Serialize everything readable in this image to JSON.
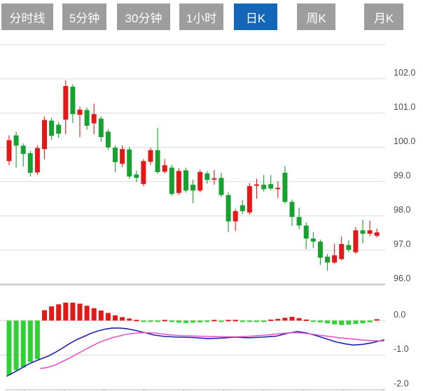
{
  "tabs": {
    "items": [
      {
        "label": "分时线",
        "active": false
      },
      {
        "label": "5分钟",
        "active": false
      },
      {
        "label": "30分钟",
        "active": false
      },
      {
        "label": "1小时",
        "active": false
      },
      {
        "label": "日K",
        "active": true
      },
      {
        "label": "周K",
        "active": false
      },
      {
        "label": "月K",
        "active": false
      }
    ]
  },
  "colors": {
    "up": "#e51717",
    "down": "#17a12e",
    "macd_up": "#e51717",
    "macd_down": "#2fd134",
    "dif_line": "#1f1fae",
    "dea_line": "#e551c9",
    "grid": "#d9d9d9",
    "separator": "#c9c9c9",
    "zero_line": "#e3cfcf",
    "axis_text": "#4d4d4d",
    "tab_bg": "#9d9d9d",
    "tab_active_bg": "#1467b8",
    "tab_text": "#ffffff"
  },
  "chart_data": [
    {
      "type": "candlestick",
      "panel": "price",
      "title": "",
      "ylabel": "",
      "ylim": [
        96,
        103
      ],
      "grid": true,
      "axis_labels": [
        "102.0",
        "101.0",
        "100.0",
        "99.0",
        "98.0",
        "97.0",
        "96.0"
      ],
      "gridline_values": [
        103,
        102,
        101,
        100,
        99,
        98,
        97,
        96
      ],
      "candles_ohlc": [
        [
          99.6,
          100.35,
          99.48,
          100.21
        ],
        [
          100.35,
          100.46,
          99.41,
          100.05
        ],
        [
          100.05,
          100.12,
          99.44,
          99.81
        ],
        [
          99.83,
          99.9,
          99.15,
          99.26
        ],
        [
          99.27,
          100.06,
          99.2,
          99.98
        ],
        [
          99.95,
          100.9,
          99.65,
          100.8
        ],
        [
          100.78,
          100.86,
          100.22,
          100.34
        ],
        [
          100.66,
          100.74,
          100.28,
          100.4
        ],
        [
          100.81,
          101.96,
          100.38,
          101.79
        ],
        [
          101.77,
          101.84,
          100.71,
          100.97
        ],
        [
          100.95,
          101.19,
          100.3,
          101.1
        ],
        [
          101.09,
          101.16,
          100.52,
          100.63
        ],
        [
          100.7,
          101.28,
          100.38,
          100.97
        ],
        [
          100.84,
          100.91,
          100.16,
          100.3
        ],
        [
          100.46,
          100.53,
          99.93,
          100.0
        ],
        [
          99.99,
          100.06,
          99.27,
          99.57
        ],
        [
          99.52,
          100.06,
          99.43,
          99.95
        ],
        [
          99.94,
          100.01,
          99.08,
          99.15
        ],
        [
          99.21,
          99.32,
          98.99,
          99.11
        ],
        [
          98.93,
          99.66,
          98.87,
          99.6
        ],
        [
          99.58,
          99.99,
          99.49,
          99.92
        ],
        [
          99.92,
          100.57,
          99.23,
          99.28
        ],
        [
          99.29,
          99.66,
          99.24,
          99.48
        ],
        [
          99.41,
          99.49,
          98.59,
          98.64
        ],
        [
          98.67,
          99.39,
          98.61,
          99.31
        ],
        [
          99.33,
          99.41,
          98.68,
          98.74
        ],
        [
          98.91,
          99.06,
          98.37,
          98.74
        ],
        [
          98.74,
          99.35,
          98.69,
          99.28
        ],
        [
          99.24,
          99.31,
          98.94,
          99.05
        ],
        [
          99.06,
          99.34,
          98.91,
          99.1
        ],
        [
          99.11,
          99.26,
          98.55,
          98.61
        ],
        [
          98.61,
          98.69,
          97.53,
          97.84
        ],
        [
          97.84,
          98.21,
          97.56,
          98.14
        ],
        [
          98.31,
          98.46,
          98.06,
          98.14
        ],
        [
          98.1,
          98.96,
          98.04,
          98.87
        ],
        [
          98.88,
          99.09,
          98.5,
          98.92
        ],
        [
          98.91,
          99.19,
          98.71,
          98.78
        ],
        [
          98.93,
          99.19,
          98.74,
          98.8
        ],
        [
          98.78,
          99.01,
          98.52,
          98.82
        ],
        [
          99.26,
          99.46,
          98.36,
          98.41
        ],
        [
          98.41,
          98.48,
          97.71,
          97.97
        ],
        [
          97.97,
          98.24,
          97.61,
          97.72
        ],
        [
          97.72,
          97.81,
          97.03,
          97.34
        ],
        [
          97.34,
          97.53,
          97.06,
          97.25
        ],
        [
          97.25,
          97.31,
          96.57,
          96.78
        ],
        [
          96.81,
          96.89,
          96.4,
          96.64
        ],
        [
          96.64,
          97.19,
          96.59,
          96.85
        ],
        [
          96.74,
          97.4,
          96.7,
          97.18
        ],
        [
          97.15,
          97.29,
          96.94,
          97.01
        ],
        [
          96.94,
          97.68,
          96.9,
          97.58
        ],
        [
          97.58,
          97.89,
          97.2,
          97.48
        ],
        [
          97.48,
          97.86,
          97.41,
          97.58
        ],
        [
          97.42,
          97.63,
          97.37,
          97.52
        ]
      ]
    },
    {
      "type": "bar",
      "panel": "macd",
      "title": "",
      "ylim": [
        -2.1,
        0.6
      ],
      "axis_labels": [
        "0.0",
        "-1.0",
        "-2.0"
      ],
      "axis_values": [
        0,
        -1,
        -2
      ],
      "histogram": [
        -1.58,
        -1.44,
        -1.36,
        -1.2,
        -1.12,
        0.3,
        0.41,
        0.47,
        0.52,
        0.52,
        0.49,
        0.43,
        0.36,
        0.29,
        0.22,
        0.15,
        0.1,
        0.06,
        0.02,
        -0.02,
        -0.03,
        -0.03,
        0.02,
        -0.04,
        -0.06,
        -0.07,
        -0.06,
        -0.05,
        -0.03,
        0.02,
        -0.02,
        0.02,
        0.02,
        -0.03,
        -0.04,
        -0.04,
        -0.03,
        0.03,
        0.05,
        0.08,
        0.11,
        0.07,
        0.03,
        -0.02,
        -0.05,
        -0.08,
        -0.11,
        -0.13,
        -0.12,
        -0.1,
        -0.08,
        -0.05,
        0.04
      ],
      "dif": [
        [
          10,
          -1.61
        ],
        [
          20,
          -1.5
        ],
        [
          30,
          -1.39
        ],
        [
          40,
          -1.27
        ],
        [
          50,
          -1.18
        ],
        [
          60,
          -1.1
        ],
        [
          70,
          -1.02
        ],
        [
          80,
          -0.91
        ],
        [
          90,
          -0.79
        ],
        [
          100,
          -0.66
        ],
        [
          110,
          -0.55
        ],
        [
          120,
          -0.46
        ],
        [
          130,
          -0.37
        ],
        [
          140,
          -0.3
        ],
        [
          150,
          -0.25
        ],
        [
          160,
          -0.22
        ],
        [
          172,
          -0.22
        ],
        [
          182,
          -0.24
        ],
        [
          192,
          -0.28
        ],
        [
          205,
          -0.34
        ],
        [
          220,
          -0.42
        ],
        [
          235,
          -0.46
        ],
        [
          255,
          -0.48
        ],
        [
          275,
          -0.49
        ],
        [
          295,
          -0.52
        ],
        [
          315,
          -0.51
        ],
        [
          335,
          -0.48
        ],
        [
          355,
          -0.5
        ],
        [
          375,
          -0.48
        ],
        [
          395,
          -0.45
        ],
        [
          410,
          -0.37
        ],
        [
          425,
          -0.32
        ],
        [
          438,
          -0.36
        ],
        [
          452,
          -0.44
        ],
        [
          466,
          -0.53
        ],
        [
          480,
          -0.62
        ],
        [
          494,
          -0.68
        ],
        [
          505,
          -0.71
        ],
        [
          518,
          -0.69
        ],
        [
          532,
          -0.64
        ],
        [
          548,
          -0.56
        ]
      ],
      "dea": [
        [
          58,
          -1.39
        ],
        [
          68,
          -1.36
        ],
        [
          80,
          -1.28
        ],
        [
          90,
          -1.18
        ],
        [
          100,
          -1.08
        ],
        [
          110,
          -0.97
        ],
        [
          120,
          -0.86
        ],
        [
          130,
          -0.75
        ],
        [
          140,
          -0.65
        ],
        [
          150,
          -0.57
        ],
        [
          160,
          -0.5
        ],
        [
          170,
          -0.45
        ],
        [
          180,
          -0.4
        ],
        [
          192,
          -0.37
        ],
        [
          205,
          -0.35
        ],
        [
          220,
          -0.36
        ],
        [
          240,
          -0.41
        ],
        [
          260,
          -0.44
        ],
        [
          280,
          -0.45
        ],
        [
          300,
          -0.46
        ],
        [
          320,
          -0.47
        ],
        [
          340,
          -0.47
        ],
        [
          360,
          -0.45
        ],
        [
          380,
          -0.42
        ],
        [
          395,
          -0.39
        ],
        [
          410,
          -0.36
        ],
        [
          425,
          -0.35
        ],
        [
          440,
          -0.38
        ],
        [
          455,
          -0.42
        ],
        [
          470,
          -0.46
        ],
        [
          485,
          -0.5
        ],
        [
          500,
          -0.53
        ],
        [
          515,
          -0.56
        ],
        [
          530,
          -0.585
        ],
        [
          548,
          -0.59
        ]
      ]
    }
  ]
}
